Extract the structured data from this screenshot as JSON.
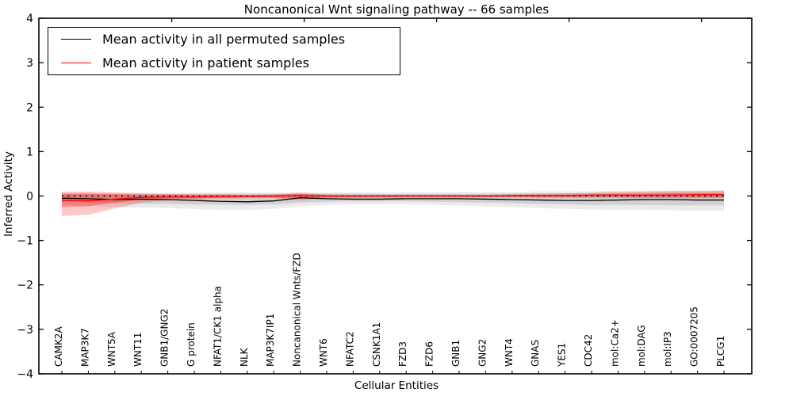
{
  "figure": {
    "title": "Noncanonical Wnt signaling pathway -- 66 samples"
  },
  "legend": {
    "items": [
      {
        "label": "Mean activity in all permuted samples",
        "color": "#000000"
      },
      {
        "label": "Mean activity in patient samples",
        "color": "#ff0000"
      }
    ]
  },
  "chart_data": {
    "type": "line",
    "title": "Noncanonical Wnt signaling pathway -- 66 samples",
    "xlabel": "Cellular Entities",
    "ylabel": "Inferred Activity",
    "ylim": [
      -4,
      4
    ],
    "yticks": [
      "4",
      "3",
      "2",
      "1",
      "0",
      "−1",
      "−2",
      "−3",
      "−4"
    ],
    "ytick_values": [
      4,
      3,
      2,
      1,
      0,
      -1,
      -2,
      -3,
      -4
    ],
    "grid": false,
    "legend_position": "upper left",
    "zero_line": {
      "y": 0,
      "style": "dotted",
      "color": "#000000"
    },
    "colors": {
      "permuted_line": "#000000",
      "patient_line": "#ff0000",
      "permuted_band_outer": "rgba(0,0,0,0.08)",
      "permuted_band_inner": "rgba(0,0,0,0.11)",
      "patient_band_outer": "rgba(255,0,0,0.22)",
      "patient_band_inner": "rgba(255,0,0,0.30)"
    },
    "categories": [
      "CAMK2A",
      "MAP3K7",
      "WNT5A",
      "WNT11",
      "GNB1/GNG2",
      "G protein",
      "NFAT1/CK1 alpha",
      "NLK",
      "MAP3K7IP1",
      "Noncanonical Wnts/FZD",
      "WNT6",
      "NFATC2",
      "CSNK1A1",
      "FZD3",
      "FZD6",
      "GNB1",
      "GNG2",
      "WNT4",
      "GNAS",
      "YES1",
      "CDC42",
      "mol:Ca2+",
      "mol:DAG",
      "mol:IP3",
      "GO:0007205",
      "PLCG1"
    ],
    "series": [
      {
        "name": "Mean activity in all permuted samples",
        "color": "#000000",
        "values": [
          -0.05,
          -0.06,
          -0.08,
          -0.07,
          -0.08,
          -0.1,
          -0.12,
          -0.13,
          -0.11,
          -0.04,
          -0.06,
          -0.07,
          -0.07,
          -0.06,
          -0.06,
          -0.06,
          -0.07,
          -0.08,
          -0.09,
          -0.1,
          -0.1,
          -0.09,
          -0.08,
          -0.08,
          -0.09,
          -0.09
        ],
        "band_outer": {
          "upper": [
            0.07,
            0.07,
            0.07,
            0.07,
            0.07,
            0.08,
            0.08,
            0.08,
            0.08,
            0.07,
            0.08,
            0.08,
            0.08,
            0.08,
            0.08,
            0.09,
            0.09,
            0.09,
            0.1,
            0.1,
            0.11,
            0.12,
            0.12,
            0.13,
            0.13,
            0.13
          ],
          "lower": [
            -0.2,
            -0.22,
            -0.25,
            -0.26,
            -0.27,
            -0.29,
            -0.31,
            -0.31,
            -0.29,
            -0.23,
            -0.2,
            -0.19,
            -0.19,
            -0.19,
            -0.2,
            -0.21,
            -0.23,
            -0.25,
            -0.27,
            -0.29,
            -0.3,
            -0.31,
            -0.31,
            -0.32,
            -0.33,
            -0.33
          ]
        },
        "band_inner": {
          "upper": [
            0.04,
            0.04,
            0.04,
            0.04,
            0.04,
            0.05,
            0.05,
            0.05,
            0.05,
            0.04,
            0.05,
            0.05,
            0.05,
            0.05,
            0.05,
            0.05,
            0.05,
            0.06,
            0.06,
            0.06,
            0.07,
            0.07,
            0.07,
            0.08,
            0.08,
            0.08
          ],
          "lower": [
            -0.13,
            -0.14,
            -0.16,
            -0.17,
            -0.18,
            -0.19,
            -0.2,
            -0.2,
            -0.19,
            -0.15,
            -0.13,
            -0.12,
            -0.12,
            -0.12,
            -0.13,
            -0.14,
            -0.15,
            -0.16,
            -0.18,
            -0.19,
            -0.2,
            -0.2,
            -0.2,
            -0.21,
            -0.21,
            -0.21
          ]
        }
      },
      {
        "name": "Mean activity in patient samples",
        "color": "#ff0000",
        "values": [
          -0.1,
          -0.11,
          -0.07,
          -0.03,
          -0.02,
          -0.02,
          -0.01,
          -0.01,
          0.0,
          0.01,
          0.0,
          0.0,
          0.0,
          0.0,
          0.0,
          0.0,
          0.0,
          0.01,
          0.01,
          0.01,
          0.02,
          0.02,
          0.02,
          0.02,
          0.03,
          0.03
        ],
        "band_outer": {
          "upper": [
            0.1,
            0.1,
            0.08,
            0.06,
            0.05,
            0.04,
            0.04,
            0.03,
            0.04,
            0.08,
            0.04,
            0.03,
            0.03,
            0.03,
            0.03,
            0.03,
            0.03,
            0.04,
            0.05,
            0.06,
            0.07,
            0.09,
            0.1,
            0.11,
            0.11,
            0.12
          ],
          "lower": [
            -0.45,
            -0.42,
            -0.28,
            -0.15,
            -0.1,
            -0.08,
            -0.06,
            -0.05,
            -0.05,
            -0.1,
            -0.05,
            -0.04,
            -0.04,
            -0.03,
            -0.03,
            -0.03,
            -0.03,
            -0.03,
            -0.04,
            -0.04,
            -0.04,
            -0.04,
            -0.05,
            -0.05,
            -0.05,
            -0.05
          ]
        },
        "band_inner": {
          "upper": [
            0.05,
            0.05,
            0.04,
            0.03,
            0.03,
            0.02,
            0.02,
            0.02,
            0.02,
            0.05,
            0.02,
            0.02,
            0.02,
            0.02,
            0.02,
            0.02,
            0.02,
            0.02,
            0.03,
            0.03,
            0.04,
            0.05,
            0.05,
            0.06,
            0.06,
            0.06
          ],
          "lower": [
            -0.25,
            -0.23,
            -0.15,
            -0.08,
            -0.06,
            -0.05,
            -0.04,
            -0.03,
            -0.03,
            -0.06,
            -0.03,
            -0.03,
            -0.02,
            -0.02,
            -0.02,
            -0.02,
            -0.02,
            -0.02,
            -0.02,
            -0.02,
            -0.02,
            -0.03,
            -0.03,
            -0.03,
            -0.03,
            -0.03
          ]
        }
      }
    ]
  }
}
